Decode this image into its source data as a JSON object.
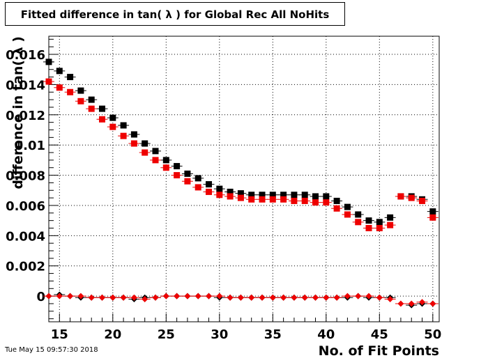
{
  "title": "Fitted difference in tan( λ ) for Global Rec All NoHits",
  "footer_date": "Tue May 15 09:57:30 2018",
  "chart_data": {
    "type": "scatter",
    "title": "Fitted difference in tan( λ ) for Global Rec All NoHits",
    "xlabel": "No. of Fit Points",
    "ylabel": "difference in tan( λ )",
    "xlim": [
      14,
      50.6
    ],
    "ylim": [
      -0.0017,
      0.0172
    ],
    "x_ticks": [
      15,
      20,
      25,
      30,
      35,
      40,
      45,
      50
    ],
    "x_tick_labels": [
      "15",
      "20",
      "25",
      "30",
      "35",
      "40",
      "45",
      "50"
    ],
    "y_ticks": [
      0,
      0.002,
      0.004,
      0.006,
      0.008,
      0.01,
      0.012,
      0.014,
      0.016
    ],
    "y_tick_labels": [
      "0",
      "0.002",
      "0.004",
      "0.006",
      "0.008",
      "0.01",
      "0.012",
      "0.014",
      "0.016"
    ],
    "grid": true,
    "colors": {
      "black": "#000000",
      "red": "#ee0000"
    },
    "series": [
      {
        "marker": "square",
        "color": "#000000",
        "x": [
          14,
          15,
          16,
          17,
          18,
          19,
          20,
          21,
          22,
          23,
          24,
          25,
          26,
          27,
          28,
          29,
          30,
          31,
          32,
          33,
          34,
          35,
          36,
          37,
          38,
          39,
          40,
          41,
          42,
          43,
          44,
          45,
          46,
          47,
          48,
          49,
          50
        ],
        "y": [
          0.0155,
          0.0149,
          0.0145,
          0.0136,
          0.013,
          0.0124,
          0.0118,
          0.0113,
          0.0107,
          0.0101,
          0.0096,
          0.009,
          0.0086,
          0.0081,
          0.0078,
          0.0074,
          0.0071,
          0.0069,
          0.0068,
          0.0067,
          0.0067,
          0.0067,
          0.0067,
          0.0067,
          0.0067,
          0.0066,
          0.0066,
          0.0063,
          0.0059,
          0.0054,
          0.005,
          0.0049,
          0.0052,
          0.0066,
          0.0066,
          0.0064,
          0.0056
        ]
      },
      {
        "marker": "square",
        "color": "#ee0000",
        "x": [
          14,
          15,
          16,
          17,
          18,
          19,
          20,
          21,
          22,
          23,
          24,
          25,
          26,
          27,
          28,
          29,
          30,
          31,
          32,
          33,
          34,
          35,
          36,
          37,
          38,
          39,
          40,
          41,
          42,
          43,
          44,
          45,
          46,
          47,
          48,
          49,
          50
        ],
        "y": [
          0.0142,
          0.0138,
          0.0135,
          0.0129,
          0.0124,
          0.0117,
          0.0112,
          0.0106,
          0.0101,
          0.0095,
          0.009,
          0.0085,
          0.008,
          0.0076,
          0.0072,
          0.0069,
          0.0067,
          0.0066,
          0.0065,
          0.0064,
          0.0064,
          0.0064,
          0.0064,
          0.0063,
          0.0063,
          0.0062,
          0.0062,
          0.0058,
          0.0054,
          0.0049,
          0.0045,
          0.0045,
          0.0047,
          0.0066,
          0.0065,
          0.0063,
          0.0052
        ]
      },
      {
        "marker": "diamond",
        "color": "#000000",
        "x": [
          14,
          15,
          16,
          17,
          18,
          19,
          20,
          21,
          22,
          23,
          24,
          25,
          26,
          27,
          28,
          29,
          30,
          31,
          32,
          33,
          34,
          35,
          36,
          37,
          38,
          39,
          40,
          41,
          42,
          43,
          44,
          45,
          46,
          48,
          49,
          50
        ],
        "y": [
          0.0,
          0.0001,
          0.0,
          -0.0001,
          -0.0001,
          -0.0001,
          -0.0001,
          -0.0001,
          -0.0002,
          -0.0001,
          -0.0001,
          0.0,
          0.0,
          0.0,
          0.0,
          0.0,
          -0.0001,
          -0.0001,
          -0.0001,
          -0.0001,
          -0.0001,
          -0.0001,
          -0.0001,
          -0.0001,
          -0.0001,
          -0.0001,
          -0.0001,
          -0.0001,
          -0.0001,
          0.0,
          -0.0001,
          -0.0001,
          -0.0001,
          -0.0006,
          -0.0005,
          -0.0005
        ]
      },
      {
        "marker": "diamond",
        "color": "#ee0000",
        "x": [
          14,
          15,
          16,
          17,
          18,
          19,
          20,
          21,
          22,
          23,
          24,
          25,
          26,
          27,
          28,
          29,
          30,
          31,
          32,
          33,
          34,
          35,
          36,
          37,
          38,
          39,
          40,
          41,
          42,
          43,
          44,
          45,
          46,
          47,
          48,
          49,
          50
        ],
        "y": [
          0.0,
          0.0,
          0.0,
          0.0,
          -0.0001,
          -0.0001,
          -0.0001,
          -0.0001,
          -0.0001,
          -0.0002,
          -0.0001,
          0.0,
          0.0,
          0.0,
          0.0,
          0.0,
          0.0,
          -0.0001,
          -0.0001,
          -0.0001,
          -0.0001,
          -0.0001,
          -0.0001,
          -0.0001,
          -0.0001,
          -0.0001,
          -0.0001,
          -0.0001,
          0.0,
          0.0,
          0.0,
          -0.0001,
          -0.0002,
          -0.0005,
          -0.0005,
          -0.0004,
          -0.0005
        ]
      }
    ]
  }
}
